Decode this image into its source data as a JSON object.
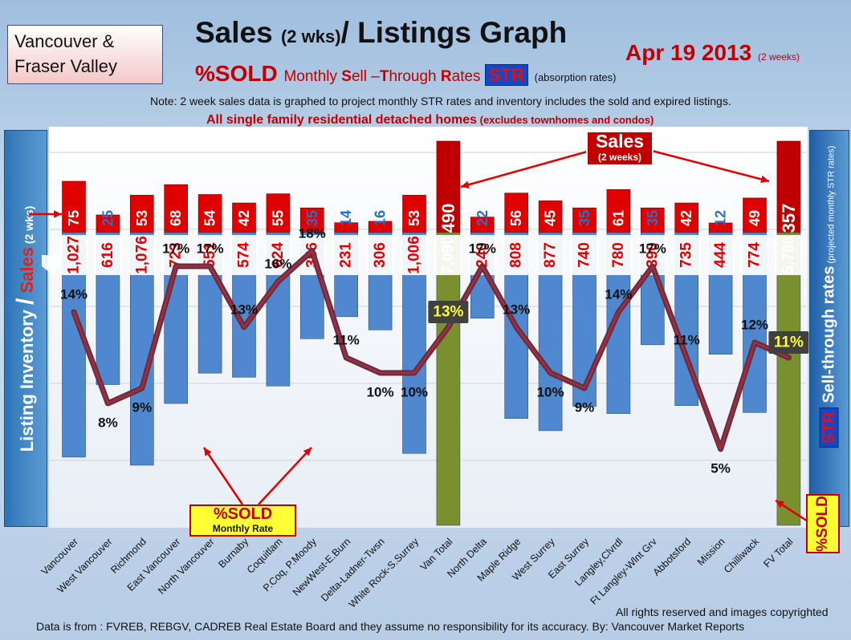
{
  "header": {
    "region_line1": "Vancouver &",
    "region_line2": "Fraser Valley",
    "title_a": "Sales ",
    "title_b": "(2 wks)",
    "title_c": "/ Listings Graph",
    "date": "Apr 19 2013",
    "date_suffix": "(2 weeks)",
    "subtitle_a": "%SOLD",
    "subtitle_b": "Monthly ",
    "subtitle_s": "S",
    "subtitle_ell": "ell –",
    "subtitle_t": "T",
    "subtitle_hrough": "hrough ",
    "subtitle_r": "R",
    "subtitle_ates": "ates ",
    "str_badge": "STR",
    "absorption": "(absorption rates)",
    "note": "Note: 2 week sales data is graphed to project monthly STR rates and inventory includes the sold and expired listings.",
    "note2_a": "All single family residential detached homes",
    "note2_b": " (excludes townhomes and condos)"
  },
  "left_axis": {
    "inventory": "Listing Inventory ",
    "slash": "/",
    "sales": " Sales",
    "period": " (2 wks)"
  },
  "right_axis": {
    "str": "STR",
    "label": " Sell-through rates",
    "note": " (projected monthly STR rates)"
  },
  "callouts": {
    "sold_big": "%SOLD",
    "sold_small": "Monthly Rate",
    "sold_corner": "%SOLD",
    "sales_big": "Sales",
    "sales_small": "(2 weeks)"
  },
  "footer": {
    "rights": "All rights reserved and  images copyrighted",
    "data": "Data is  from : FVREB, REBGV, CADREB Real Estate Board and they assume no responsibility  for its accuracy. By: Vancouver Market Reports"
  },
  "colors": {
    "sales_bar": "#e00000",
    "inventory_bar": "#4f88cf",
    "total_sales_bar": "#c00000",
    "total_inventory_bar": "#7a8f2e",
    "sold_line": "#6b2a3a",
    "sales_label_light": "#2e6ec0",
    "inventory_label": "#e00000"
  },
  "chart_data": {
    "type": "bar",
    "categories": [
      "Vancouver",
      "West Vancouver",
      "Richmond",
      "East Vancouver",
      "North Vancouver",
      "Burnaby",
      "Coquitlam",
      "P.Coq, P.Moody",
      "NewWest-E.Burn",
      "Delta-Ladner-Twsn",
      "White Rock-S.Surrey",
      "Van Total",
      "North Delta",
      "Maple Ridge",
      "West Surrey",
      "East Surrey",
      "Langley,Clvrdl",
      "Ft Langley-Wlnt Grv",
      "Abbotsford",
      "Mission",
      "Chilliwack",
      "FV Total"
    ],
    "series": [
      {
        "name": "Sales (2 wks)",
        "values": [
          75,
          25,
          53,
          68,
          54,
          42,
          55,
          35,
          14,
          16,
          53,
          490,
          22,
          56,
          45,
          35,
          61,
          35,
          42,
          12,
          49,
          357
        ]
      },
      {
        "name": "Listing Inventory",
        "values": [
          1027,
          616,
          1076,
          723,
          551,
          574,
          624,
          356,
          231,
          306,
          1006,
          7090,
          240,
          808,
          877,
          740,
          780,
          390,
          735,
          444,
          774,
          5788
        ]
      },
      {
        "name": "%SOLD Monthly Rate",
        "values": [
          14,
          8,
          9,
          17,
          17,
          13,
          16,
          18,
          11,
          10,
          10,
          13,
          17,
          13,
          10,
          9,
          14,
          17,
          11,
          5,
          12,
          11
        ]
      }
    ],
    "sales_labels": [
      "75",
      "25",
      "53",
      "68",
      "54",
      "42",
      "55",
      "35",
      "14",
      "16",
      "53",
      "490",
      "22",
      "56",
      "45",
      "35",
      "61",
      "35",
      "42",
      "12",
      "49",
      "357"
    ],
    "inventory_labels": [
      "1,027",
      "616",
      "1,076",
      "723",
      "551",
      "574",
      "624",
      "356",
      "231",
      "306",
      "1,006",
      "7,090",
      "240",
      "808",
      "877",
      "740",
      "780",
      "390",
      "735",
      "444",
      "774",
      "5,788"
    ],
    "pct_labels": [
      "14%",
      "8%",
      "9%",
      "17%",
      "17%",
      "13%",
      "16%",
      "18%",
      "11%",
      "10%",
      "10%",
      "13%",
      "17%",
      "13%",
      "10%",
      "9%",
      "14%",
      "17%",
      "11%",
      "5%",
      "12%",
      "11%"
    ],
    "totals": [
      "Van Total",
      "FV Total"
    ],
    "light_sales_labels": [
      "West Vancouver",
      "P.Coq, P.Moody",
      "NewWest-E.Burn",
      "Delta-Ladner-Twsn",
      "North Delta",
      "East Surrey",
      "Ft Langley-Wlnt Grv",
      "Mission"
    ],
    "grid": true
  }
}
